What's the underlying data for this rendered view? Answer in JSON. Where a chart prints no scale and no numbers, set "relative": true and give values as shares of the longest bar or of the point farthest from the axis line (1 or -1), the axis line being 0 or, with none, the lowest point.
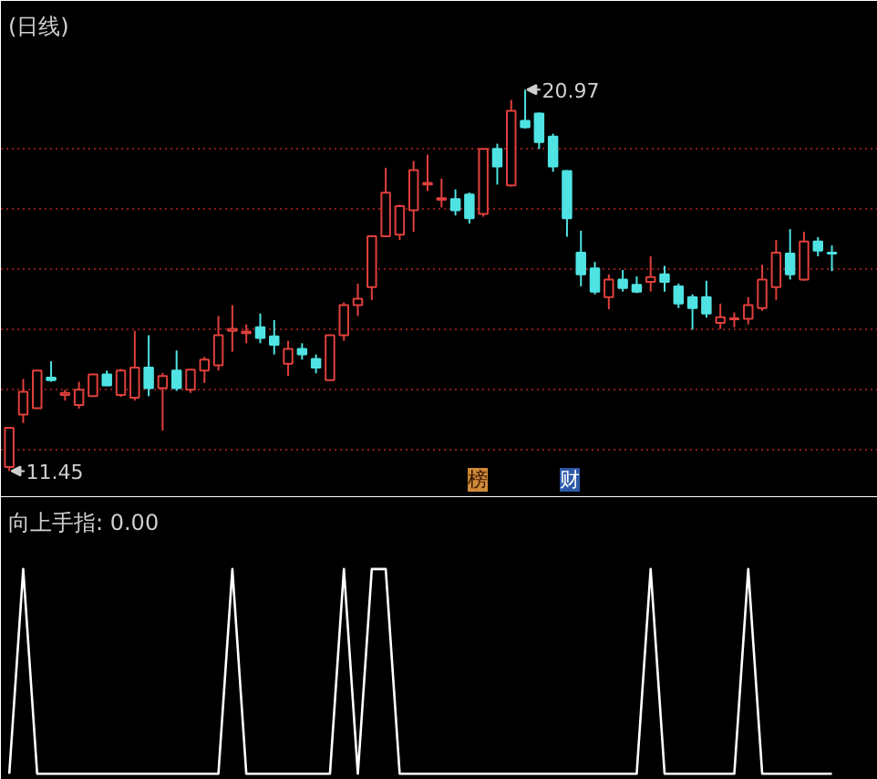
{
  "chart_data": [
    {
      "type": "candlestick",
      "title": "(日线)",
      "categories": [
        null,
        null,
        null,
        null,
        null,
        null,
        null,
        null,
        null,
        null,
        null,
        null,
        null,
        null,
        null,
        null,
        null,
        null,
        null,
        null,
        null,
        null,
        null,
        null,
        null,
        null,
        null,
        null,
        null,
        null,
        null,
        null,
        null,
        null,
        null,
        null,
        null,
        null,
        null,
        null,
        null,
        null,
        null,
        null,
        null,
        null,
        null,
        null,
        null,
        null,
        null,
        null,
        null,
        null,
        null,
        null,
        null,
        null,
        null,
        null
      ],
      "ohlc": [
        [
          11.55,
          12.55,
          11.45,
          12.53
        ],
        [
          12.86,
          13.75,
          12.65,
          13.43
        ],
        [
          13.02,
          13.98,
          13.0,
          13.96
        ],
        [
          13.78,
          14.19,
          13.68,
          13.72
        ],
        [
          13.35,
          13.48,
          13.21,
          13.4
        ],
        [
          13.1,
          13.68,
          13.01,
          13.48
        ],
        [
          13.32,
          13.88,
          13.3,
          13.86
        ],
        [
          13.86,
          13.96,
          13.57,
          13.59
        ],
        [
          13.35,
          14.0,
          13.3,
          13.96
        ],
        [
          13.28,
          14.95,
          13.21,
          14.03
        ],
        [
          14.03,
          14.84,
          13.32,
          13.52
        ],
        [
          13.52,
          13.9,
          12.46,
          13.82
        ],
        [
          13.96,
          14.46,
          13.45,
          13.52
        ],
        [
          13.48,
          14.0,
          13.4,
          13.98
        ],
        [
          13.96,
          14.3,
          13.65,
          14.23
        ],
        [
          14.09,
          15.32,
          13.96,
          14.84
        ],
        [
          14.95,
          15.59,
          14.43,
          15.0
        ],
        [
          14.89,
          15.11,
          14.64,
          14.93
        ],
        [
          15.04,
          15.38,
          14.64,
          14.77
        ],
        [
          14.81,
          15.22,
          14.36,
          14.6
        ],
        [
          14.13,
          14.7,
          13.82,
          14.5
        ],
        [
          14.5,
          14.64,
          14.23,
          14.36
        ],
        [
          14.25,
          14.36,
          13.89,
          14.03
        ],
        [
          13.72,
          14.86,
          13.7,
          14.84
        ],
        [
          14.84,
          15.66,
          14.7,
          15.59
        ],
        [
          15.59,
          16.13,
          15.32,
          15.75
        ],
        [
          16.04,
          17.33,
          15.72,
          17.31
        ],
        [
          17.31,
          19.02,
          17.29,
          18.4
        ],
        [
          17.35,
          18.1,
          17.22,
          18.06
        ],
        [
          17.96,
          19.19,
          17.42,
          18.96
        ],
        [
          18.6,
          19.35,
          18.44,
          18.64
        ],
        [
          18.22,
          18.75,
          18.03,
          18.26
        ],
        [
          18.24,
          18.48,
          17.83,
          17.96
        ],
        [
          18.35,
          18.4,
          17.63,
          17.76
        ],
        [
          17.87,
          19.5,
          17.8,
          19.49
        ],
        [
          19.49,
          19.62,
          18.6,
          19.05
        ],
        [
          18.58,
          20.71,
          18.55,
          20.44
        ],
        [
          20.19,
          20.97,
          20.0,
          20.03
        ],
        [
          20.37,
          20.4,
          19.49,
          19.66
        ],
        [
          19.8,
          19.87,
          18.92,
          19.05
        ],
        [
          18.94,
          18.96,
          17.3,
          17.76
        ],
        [
          16.9,
          17.45,
          16.06,
          16.36
        ],
        [
          16.51,
          16.67,
          15.86,
          15.93
        ],
        [
          15.79,
          16.36,
          15.49,
          16.23
        ],
        [
          16.23,
          16.47,
          15.93,
          16.02
        ],
        [
          16.1,
          16.31,
          15.89,
          15.93
        ],
        [
          16.17,
          16.81,
          15.93,
          16.29
        ],
        [
          16.36,
          16.57,
          15.93,
          16.17
        ],
        [
          16.06,
          16.13,
          15.52,
          15.63
        ],
        [
          15.79,
          15.86,
          14.98,
          15.52
        ],
        [
          15.79,
          16.2,
          15.28,
          15.38
        ],
        [
          15.15,
          15.63,
          15.0,
          15.29
        ],
        [
          15.24,
          15.41,
          15.04,
          15.26
        ],
        [
          15.25,
          15.79,
          15.11,
          15.59
        ],
        [
          15.52,
          16.6,
          15.45,
          16.23
        ],
        [
          16.04,
          17.22,
          15.72,
          16.9
        ],
        [
          16.88,
          17.49,
          16.23,
          16.36
        ],
        [
          16.23,
          17.42,
          16.2,
          17.18
        ],
        [
          17.18,
          17.29,
          16.81,
          16.95
        ],
        [
          16.9,
          17.08,
          16.44,
          16.88
        ]
      ],
      "colors": [
        "#e0403c",
        "#e0403c",
        "#e0403c",
        "#4fe3e3",
        "#e0403c",
        "#e0403c",
        "#e0403c",
        "#4fe3e3",
        "#e0403c",
        "#e0403c",
        "#4fe3e3",
        "#e0403c",
        "#4fe3e3",
        "#e0403c",
        "#e0403c",
        "#e0403c",
        "#e0403c",
        "#e0403c",
        "#4fe3e3",
        "#4fe3e3",
        "#e0403c",
        "#4fe3e3",
        "#4fe3e3",
        "#e0403c",
        "#e0403c",
        "#e0403c",
        "#e0403c",
        "#e0403c",
        "#e0403c",
        "#e0403c",
        "#e0403c",
        "#e0403c",
        "#4fe3e3",
        "#4fe3e3",
        "#e0403c",
        "#4fe3e3",
        "#e0403c",
        "#4fe3e3",
        "#4fe3e3",
        "#4fe3e3",
        "#4fe3e3",
        "#4fe3e3",
        "#4fe3e3",
        "#e0403c",
        "#4fe3e3",
        "#4fe3e3",
        "#e0403c",
        "#4fe3e3",
        "#4fe3e3",
        "#4fe3e3",
        "#4fe3e3",
        "#e0403c",
        "#e0403c",
        "#e0403c",
        "#e0403c",
        "#e0403c",
        "#4fe3e3",
        "#e0403c",
        "#4fe3e3",
        "#4fe3e3"
      ],
      "value_labels": [
        "11.45",
        null,
        null,
        null,
        null,
        null,
        null,
        null,
        null,
        null,
        null,
        null,
        null,
        null,
        null,
        null,
        null,
        null,
        null,
        null,
        null,
        null,
        null,
        null,
        null,
        null,
        null,
        null,
        null,
        null,
        null,
        null,
        null,
        null,
        null,
        null,
        null,
        "20.97",
        null,
        null,
        null,
        null,
        null,
        null,
        null,
        null,
        null,
        null,
        null,
        null,
        null,
        null,
        null,
        null,
        null,
        null,
        null,
        null,
        null,
        null
      ],
      "ylim": [
        10.8,
        22.0
      ],
      "yticks": [
        {
          "value": 12.0,
          "label": null
        },
        {
          "value": 13.5,
          "label": null
        },
        {
          "value": 15.0,
          "label": null
        },
        {
          "value": 16.5,
          "label": null
        },
        {
          "value": 18.0,
          "label": null
        },
        {
          "value": 19.5,
          "label": null
        }
      ],
      "grid": "y",
      "tick_labels": false,
      "annotations": [
        "榜",
        "财"
      ]
    },
    {
      "type": "line",
      "title": "向上手指: 0.00",
      "relative": true,
      "categories": [
        null,
        null,
        null,
        null,
        null,
        null,
        null,
        null,
        null,
        null,
        null,
        null,
        null,
        null,
        null,
        null,
        null,
        null,
        null,
        null,
        null,
        null,
        null,
        null,
        null,
        null,
        null,
        null,
        null,
        null,
        null,
        null,
        null,
        null,
        null,
        null,
        null,
        null,
        null,
        null,
        null,
        null,
        null,
        null,
        null,
        null,
        null,
        null,
        null,
        null,
        null,
        null,
        null,
        null,
        null,
        null,
        null,
        null,
        null,
        null
      ],
      "series": [
        {
          "color": "#ffffff",
          "values": [
            0,
            1,
            0,
            0,
            0,
            0,
            0,
            0,
            0,
            0,
            0,
            0,
            0,
            0,
            0,
            0,
            1,
            0,
            0,
            0,
            0,
            0,
            0,
            0,
            1,
            0,
            1,
            1,
            0,
            0,
            0,
            0,
            0,
            0,
            0,
            0,
            0,
            0,
            0,
            0,
            0,
            0,
            0,
            0,
            0,
            0,
            1,
            0,
            0,
            0,
            0,
            0,
            0,
            1,
            0,
            0,
            0,
            0,
            0,
            0
          ]
        }
      ],
      "tick_labels": false
    }
  ]
}
